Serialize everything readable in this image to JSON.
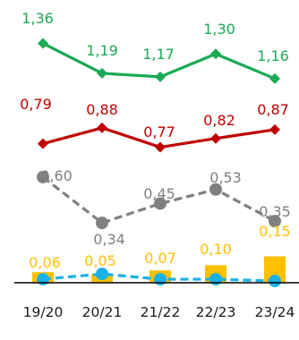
{
  "chart_data": {
    "type": "line",
    "categories": [
      "19/20",
      "20/21",
      "21/22",
      "22/23",
      "23/24"
    ],
    "series": [
      {
        "values": [
          1.36,
          1.19,
          1.17,
          1.3,
          1.16
        ],
        "labels": [
          "1,36",
          "1,19",
          "1,17",
          "1,30",
          "1,16"
        ],
        "color": "#1aaa55",
        "marker": "diamond",
        "line": "solid"
      },
      {
        "values": [
          0.79,
          0.88,
          0.77,
          0.82,
          0.87
        ],
        "labels": [
          "0,79",
          "0,88",
          "0,77",
          "0,82",
          "0,87"
        ],
        "color": "#c00000",
        "marker": "diamond",
        "line": "solid"
      },
      {
        "values": [
          0.6,
          0.34,
          0.45,
          0.53,
          0.35
        ],
        "labels": [
          "0,60",
          "0,34",
          "0,45",
          "0,53",
          "0,35"
        ],
        "color": "#808080",
        "marker": "circle",
        "line": "dashed"
      },
      {
        "values": [
          0.06,
          0.05,
          0.07,
          0.1,
          0.15
        ],
        "labels": [
          "0,06",
          "0,05",
          "0,07",
          "0,10",
          "0,15"
        ],
        "color": "#ffc000",
        "marker": "none",
        "line": "bar"
      },
      {
        "values": [
          0.02,
          0.05,
          0.02,
          0.02,
          0.01
        ],
        "labels": [],
        "color": "#1ab0e8",
        "marker": "circle",
        "line": "dashed"
      }
    ],
    "grid": false,
    "legend": "none"
  }
}
